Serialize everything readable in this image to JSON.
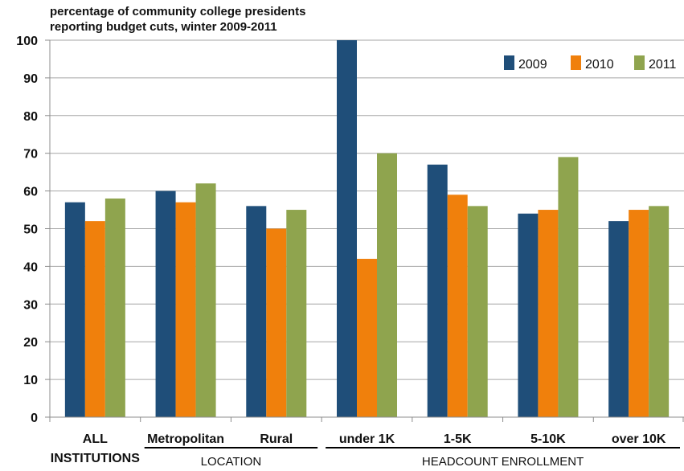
{
  "chart_data": {
    "type": "bar",
    "title_lines": [
      "percentage of community college presidents",
      "reporting budget cuts, winter 2009-2011"
    ],
    "categories": [
      [
        "ALL",
        "INSTITUTIONS"
      ],
      [
        "Metropolitan"
      ],
      [
        "Rural"
      ],
      [
        "under 1K"
      ],
      [
        "1-5K"
      ],
      [
        "5-10K"
      ],
      [
        "over 10K"
      ]
    ],
    "series": [
      {
        "name": "2009",
        "color": "#1f4e79",
        "values": [
          57,
          60,
          56,
          100,
          67,
          54,
          52
        ]
      },
      {
        "name": "2010",
        "color": "#f0800c",
        "values": [
          52,
          57,
          50,
          42,
          59,
          55,
          55
        ]
      },
      {
        "name": "2011",
        "color": "#8fa44e",
        "values": [
          58,
          62,
          55,
          70,
          56,
          69,
          56
        ]
      }
    ],
    "ylim": [
      0,
      100
    ],
    "yticks": [
      0,
      10,
      20,
      30,
      40,
      50,
      60,
      70,
      80,
      90,
      100
    ],
    "grid": true,
    "legend_position": "top-right",
    "groups": [
      {
        "label": "LOCATION",
        "categories": [
          1,
          2
        ]
      },
      {
        "label": "HEADCOUNT ENROLLMENT",
        "categories": [
          3,
          4,
          5,
          6
        ]
      }
    ]
  }
}
